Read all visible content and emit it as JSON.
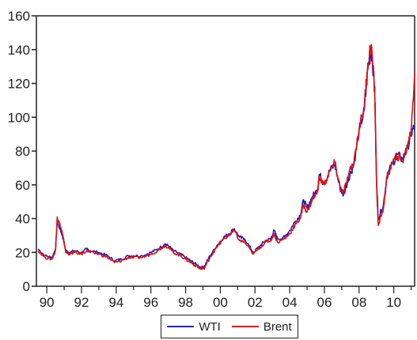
{
  "chart_data": {
    "type": "line",
    "title": "",
    "xlabel": "",
    "ylabel": "",
    "xlim": [
      1989.4,
      2011.2
    ],
    "ylim": [
      0,
      160
    ],
    "y_ticks": [
      0,
      20,
      40,
      60,
      80,
      100,
      120,
      140,
      160
    ],
    "x_ticks": [
      1990,
      1992,
      1994,
      1996,
      1998,
      2000,
      2002,
      2004,
      2006,
      2008,
      2010
    ],
    "x_tick_labels": [
      "90",
      "92",
      "94",
      "96",
      "98",
      "00",
      "02",
      "04",
      "06",
      "08",
      "10"
    ],
    "grid": false,
    "legend": "bottom-center",
    "series": [
      {
        "name": "WTI",
        "color": "#1f1fbf",
        "x": [
          1989.5,
          1989.9,
          1990.3,
          1990.5,
          1990.6,
          1990.8,
          1990.9,
          1991.1,
          1991.3,
          1991.6,
          1992.0,
          1992.3,
          1992.5,
          1993.0,
          1993.5,
          1993.9,
          1994.3,
          1994.7,
          1995.0,
          1995.5,
          1996.0,
          1996.4,
          1996.8,
          1997.0,
          1997.3,
          1997.7,
          1998.0,
          1998.3,
          1998.6,
          1998.9,
          1999.1,
          1999.4,
          1999.8,
          2000.2,
          2000.5,
          2000.8,
          2001.1,
          2001.4,
          2001.9,
          2002.3,
          2002.6,
          2002.9,
          2003.1,
          2003.3,
          2003.7,
          2004.0,
          2004.3,
          2004.6,
          2004.8,
          2005.0,
          2005.3,
          2005.6,
          2005.7,
          2006.0,
          2006.3,
          2006.6,
          2006.9,
          2007.1,
          2007.4,
          2007.7,
          2008.0,
          2008.3,
          2008.5,
          2008.7,
          2008.9,
          2009.0,
          2009.1,
          2009.4,
          2009.6,
          2009.9,
          2010.2,
          2010.5,
          2010.8,
          2011.0,
          2011.2
        ],
        "values": [
          22,
          18,
          17,
          22,
          38,
          33,
          30,
          21,
          20,
          21,
          20,
          22,
          21,
          20,
          18,
          15,
          16,
          18,
          18,
          18,
          20,
          22,
          25,
          24,
          21,
          19,
          17,
          15,
          13,
          11,
          12,
          18,
          24,
          29,
          31,
          34,
          29,
          28,
          20,
          24,
          27,
          28,
          33,
          28,
          29,
          33,
          38,
          42,
          51,
          46,
          53,
          57,
          66,
          61,
          68,
          72,
          58,
          54,
          64,
          72,
          92,
          104,
          128,
          140,
          118,
          65,
          40,
          48,
          65,
          72,
          78,
          75,
          82,
          90,
          95
        ]
      },
      {
        "name": "Brent",
        "color": "#e01010",
        "x": [
          1989.5,
          1989.9,
          1990.3,
          1990.5,
          1990.6,
          1990.8,
          1990.9,
          1991.1,
          1991.3,
          1991.6,
          1992.0,
          1992.3,
          1992.5,
          1993.0,
          1993.5,
          1993.9,
          1994.3,
          1994.7,
          1995.0,
          1995.5,
          1996.0,
          1996.4,
          1996.8,
          1997.0,
          1997.3,
          1997.7,
          1998.0,
          1998.3,
          1998.6,
          1998.9,
          1999.1,
          1999.4,
          1999.8,
          2000.2,
          2000.5,
          2000.8,
          2001.1,
          2001.4,
          2001.9,
          2002.3,
          2002.6,
          2002.9,
          2003.1,
          2003.3,
          2003.7,
          2004.0,
          2004.3,
          2004.6,
          2004.8,
          2005.0,
          2005.3,
          2005.6,
          2005.7,
          2006.0,
          2006.3,
          2006.6,
          2006.9,
          2007.1,
          2007.4,
          2007.7,
          2008.0,
          2008.3,
          2008.5,
          2008.7,
          2008.9,
          2009.0,
          2009.1,
          2009.4,
          2009.6,
          2009.9,
          2010.2,
          2010.5,
          2010.8,
          2011.0,
          2011.2
        ],
        "values": [
          21,
          17,
          16,
          21,
          41,
          35,
          31,
          20,
          19,
          20,
          19,
          21,
          20,
          19,
          17,
          14,
          15,
          17,
          17,
          17,
          19,
          21,
          24,
          23,
          20,
          18,
          16,
          14,
          12,
          10,
          11,
          17,
          23,
          28,
          30,
          33,
          27,
          26,
          19,
          23,
          26,
          27,
          31,
          26,
          28,
          31,
          36,
          40,
          48,
          44,
          51,
          56,
          64,
          60,
          68,
          73,
          59,
          55,
          66,
          74,
          93,
          107,
          132,
          143,
          115,
          62,
          36,
          46,
          64,
          73,
          77,
          74,
          83,
          93,
          126
        ]
      }
    ]
  }
}
